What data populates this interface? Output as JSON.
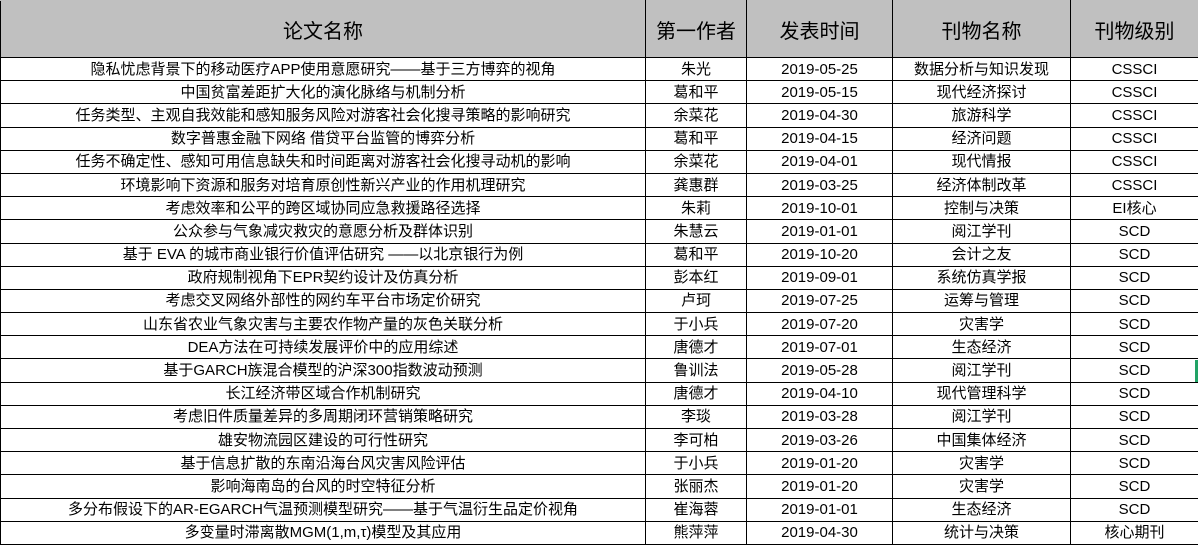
{
  "headers": [
    "论文名称",
    "第一作者",
    "发表时间",
    "刊物名称",
    "刊物级别"
  ],
  "rows": [
    [
      "隐私忧虑背景下的移动医疗APP使用意愿研究——基于三方博弈的视角",
      "朱光",
      "2019-05-25",
      "数据分析与知识发现",
      "CSSCI"
    ],
    [
      "中国贫富差距扩大化的演化脉络与机制分析",
      "葛和平",
      "2019-05-15",
      "现代经济探讨",
      "CSSCI"
    ],
    [
      "任务类型、主观自我效能和感知服务风险对游客社会化搜寻策略的影响研究",
      "余菜花",
      "2019-04-30",
      "旅游科学",
      "CSSCI"
    ],
    [
      "数字普惠金融下网络 借贷平台监管的博弈分析",
      "葛和平",
      "2019-04-15",
      "经济问题",
      "CSSCI"
    ],
    [
      "任务不确定性、感知可用信息缺失和时间距离对游客社会化搜寻动机的影响",
      "余菜花",
      "2019-04-01",
      "现代情报",
      "CSSCI"
    ],
    [
      "环境影响下资源和服务对培育原创性新兴产业的作用机理研究",
      "龚惠群",
      "2019-03-25",
      "经济体制改革",
      "CSSCI"
    ],
    [
      "考虑效率和公平的跨区域协同应急救援路径选择",
      "朱莉",
      "2019-10-01",
      "控制与决策",
      "EI核心"
    ],
    [
      "公众参与气象减灾救灾的意愿分析及群体识别",
      "朱慧云",
      "2019-01-01",
      "阅江学刊",
      "SCD"
    ],
    [
      "基于 EVA 的城市商业银行价值评估研究 ——以北京银行为例",
      "葛和平",
      "2019-10-20",
      "会计之友",
      "SCD"
    ],
    [
      "政府规制视角下EPR契约设计及仿真分析",
      "彭本红",
      "2019-09-01",
      "系统仿真学报",
      "SCD"
    ],
    [
      "考虑交叉网络外部性的网约车平台市场定价研究",
      "卢珂",
      "2019-07-25",
      "运筹与管理",
      "SCD"
    ],
    [
      "山东省农业气象灾害与主要农作物产量的灰色关联分析",
      "于小兵",
      "2019-07-20",
      "灾害学",
      "SCD"
    ],
    [
      "DEA方法在可持续发展评价中的应用综述",
      "唐德才",
      "2019-07-01",
      "生态经济",
      "SCD"
    ],
    [
      "基于GARCH族混合模型的沪深300指数波动预测",
      "鲁训法",
      "2019-05-28",
      "阅江学刊",
      "SCD"
    ],
    [
      "长江经济带区域合作机制研究",
      "唐德才",
      "2019-04-10",
      "现代管理科学",
      "SCD"
    ],
    [
      "考虑旧件质量差异的多周期闭环营销策略研究",
      "李琰",
      "2019-03-28",
      "阅江学刊",
      "SCD"
    ],
    [
      "雄安物流园区建设的可行性研究",
      "李可柏",
      "2019-03-26",
      "中国集体经济",
      "SCD"
    ],
    [
      "基于信息扩散的东南沿海台风灾害风险评估",
      "于小兵",
      "2019-01-20",
      "灾害学",
      "SCD"
    ],
    [
      "影响海南岛的台风的时空特征分析",
      "张丽杰",
      "2019-01-20",
      "灾害学",
      "SCD"
    ],
    [
      "多分布假设下的AR-EGARCH气温预测模型研究——基于气温衍生品定价视角",
      "崔海蓉",
      "2019-01-01",
      "生态经济",
      "SCD"
    ],
    [
      "多变量时滞离散MGM(1,m,τ)模型及其应用",
      "熊萍萍",
      "2019-04-30",
      "统计与决策",
      "核心期刊"
    ]
  ],
  "colors": {
    "header_bg": "#c0c0c0",
    "selection": "#21a366"
  }
}
